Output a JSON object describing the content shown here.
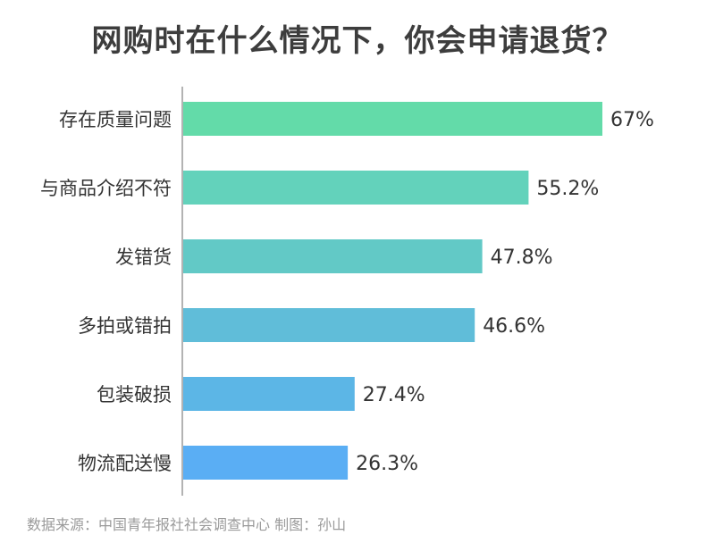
{
  "chart_data": {
    "type": "bar",
    "orientation": "horizontal",
    "title": "网购时在什么情况下，你会申请退货？",
    "categories": [
      "存在质量问题",
      "与商品介绍不符",
      "发错货",
      "多拍或错拍",
      "包装破损",
      "物流配送慢"
    ],
    "values": [
      67,
      55.2,
      47.8,
      46.6,
      27.4,
      26.3
    ],
    "value_labels": [
      "67%",
      "55.2%",
      "47.8%",
      "46.6%",
      "27.4%",
      "26.3%"
    ],
    "colors": [
      "#63dba9",
      "#63d2bb",
      "#62c9c6",
      "#60bdd9",
      "#5cb6e6",
      "#5aaef4"
    ],
    "xlabel": "",
    "ylabel": "",
    "xlim": [
      0,
      100
    ],
    "grid": false
  },
  "source_text": "数据来源：中国青年报社社会调查中心 制图：孙山"
}
